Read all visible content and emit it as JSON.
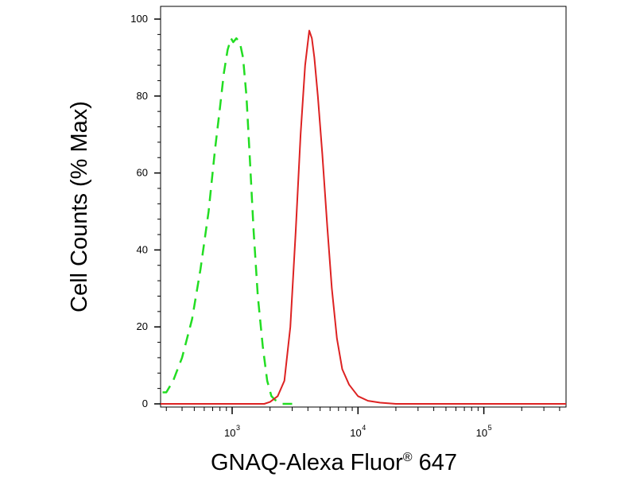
{
  "chart_data": {
    "type": "line",
    "title": "",
    "xlabel": "GNAQ-Alexa Fluor",
    "xlabel_mark": "®",
    "xlabel_tail": " 647",
    "ylabel": "Cell Counts (% Max)",
    "x_scale": "log",
    "xlim": [
      270,
      450000
    ],
    "ylim": [
      0,
      100
    ],
    "yticks": [
      0,
      20,
      40,
      60,
      80,
      100
    ],
    "ytick_labels": [
      "0",
      "20",
      "40",
      "60",
      "80",
      "100"
    ],
    "xticks": [
      {
        "value": 1000,
        "base": "10",
        "exp": "3"
      },
      {
        "value": 10000,
        "base": "10",
        "exp": "4"
      },
      {
        "value": 100000,
        "base": "10",
        "exp": "5"
      }
    ],
    "grid": false,
    "legend": "none",
    "series": [
      {
        "color": "#22dd22",
        "dash": "dashed",
        "x": [
          280,
          300,
          340,
          400,
          480,
          560,
          650,
          730,
          800,
          860,
          920,
          980,
          1020,
          1080,
          1150,
          1220,
          1300,
          1380,
          1480,
          1600,
          1750,
          1900,
          2050,
          2200,
          2500,
          3000
        ],
        "y": [
          3,
          3,
          6,
          12,
          22,
          35,
          50,
          66,
          77,
          86,
          92,
          95,
          94,
          95,
          94,
          90,
          80,
          64,
          45,
          28,
          15,
          6,
          2,
          1,
          0,
          0
        ]
      },
      {
        "color": "#dd2222",
        "dash": "solid",
        "x": [
          270,
          1000,
          1800,
          2000,
          2300,
          2600,
          2900,
          3200,
          3500,
          3800,
          4100,
          4300,
          4500,
          4800,
          5200,
          5700,
          6200,
          6800,
          7500,
          8500,
          10000,
          12000,
          15000,
          20000,
          450000
        ],
        "y": [
          0,
          0,
          0,
          0.5,
          2,
          6,
          20,
          45,
          70,
          88,
          97,
          95,
          90,
          80,
          65,
          46,
          30,
          17,
          9,
          5,
          2,
          0.8,
          0.3,
          0,
          0
        ]
      }
    ]
  }
}
